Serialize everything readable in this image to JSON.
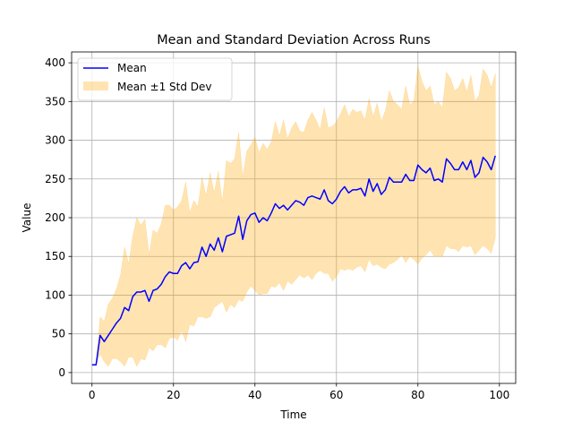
{
  "chart_data": {
    "type": "line",
    "title": "Mean and Standard Deviation Across Runs",
    "xlabel": "Time",
    "ylabel": "Value",
    "xlim": [
      -5,
      104
    ],
    "ylim": [
      -14,
      414
    ],
    "xticks": [
      0,
      20,
      40,
      60,
      80,
      100
    ],
    "yticks": [
      0,
      50,
      100,
      150,
      200,
      250,
      300,
      350,
      400
    ],
    "grid": true,
    "legend_position": "upper-left",
    "series": [
      {
        "name": "Mean",
        "color": "#0000ff",
        "x": [
          0,
          1,
          2,
          3,
          4,
          5,
          6,
          7,
          8,
          9,
          10,
          11,
          12,
          13,
          14,
          15,
          16,
          17,
          18,
          19,
          20,
          21,
          22,
          23,
          24,
          25,
          26,
          27,
          28,
          29,
          30,
          31,
          32,
          33,
          34,
          35,
          36,
          37,
          38,
          39,
          40,
          41,
          42,
          43,
          44,
          45,
          46,
          47,
          48,
          49,
          50,
          51,
          52,
          53,
          54,
          55,
          56,
          57,
          58,
          59,
          60,
          61,
          62,
          63,
          64,
          65,
          66,
          67,
          68,
          69,
          70,
          71,
          72,
          73,
          74,
          75,
          76,
          77,
          78,
          79,
          80,
          81,
          82,
          83,
          84,
          85,
          86,
          87,
          88,
          89,
          90,
          91,
          92,
          93,
          94,
          95,
          96,
          97,
          98,
          99
        ],
        "values": [
          10,
          10,
          48,
          40,
          48,
          56,
          64,
          70,
          84,
          80,
          98,
          104,
          104,
          106,
          92,
          106,
          108,
          114,
          124,
          130,
          128,
          128,
          138,
          142,
          134,
          142,
          143,
          162,
          150,
          166,
          158,
          174,
          156,
          176,
          178,
          180,
          202,
          172,
          196,
          204,
          206,
          194,
          200,
          196,
          206,
          218,
          212,
          216,
          210,
          216,
          222,
          220,
          216,
          226,
          228,
          226,
          224,
          236,
          222,
          218,
          224,
          234,
          240,
          232,
          236,
          236,
          238,
          228,
          250,
          234,
          244,
          230,
          236,
          252,
          246,
          246,
          246,
          256,
          248,
          248,
          268,
          262,
          258,
          264,
          248,
          250,
          246,
          276,
          270,
          262,
          262,
          272,
          262,
          274,
          252,
          258,
          278,
          272,
          262,
          280
        ]
      },
      {
        "name": "Mean ±1 Std Dev",
        "color": "#ffa500",
        "x": [
          0,
          1,
          2,
          3,
          4,
          5,
          6,
          7,
          8,
          9,
          10,
          11,
          12,
          13,
          14,
          15,
          16,
          17,
          18,
          19,
          20,
          21,
          22,
          23,
          24,
          25,
          26,
          27,
          28,
          29,
          30,
          31,
          32,
          33,
          34,
          35,
          36,
          37,
          38,
          39,
          40,
          41,
          42,
          43,
          44,
          45,
          46,
          47,
          48,
          49,
          50,
          51,
          52,
          53,
          54,
          55,
          56,
          57,
          58,
          59,
          60,
          61,
          62,
          63,
          64,
          65,
          66,
          67,
          68,
          69,
          70,
          71,
          72,
          73,
          74,
          75,
          76,
          77,
          78,
          79,
          80,
          81,
          82,
          83,
          84,
          85,
          86,
          87,
          88,
          89,
          90,
          91,
          92,
          93,
          94,
          95,
          96,
          97,
          98,
          99
        ],
        "upper": [
          10,
          10,
          72,
          66,
          88,
          96,
          108,
          126,
          162,
          140,
          176,
          200,
          190,
          198,
          152,
          184,
          180,
          192,
          216,
          216,
          210,
          214,
          222,
          246,
          206,
          222,
          214,
          252,
          228,
          258,
          232,
          260,
          220,
          274,
          270,
          276,
          310,
          252,
          286,
          294,
          304,
          284,
          296,
          288,
          298,
          324,
          306,
          326,
          302,
          316,
          324,
          312,
          310,
          326,
          336,
          326,
          314,
          342,
          316,
          318,
          324,
          334,
          346,
          330,
          340,
          336,
          338,
          326,
          354,
          330,
          348,
          324,
          338,
          364,
          350,
          346,
          340,
          370,
          346,
          350,
          396,
          376,
          364,
          370,
          346,
          350,
          342,
          388,
          380,
          364,
          368,
          380,
          362,
          384,
          350,
          358,
          392,
          384,
          368,
          386
        ],
        "lower": [
          10,
          10,
          24,
          14,
          8,
          18,
          18,
          14,
          8,
          20,
          20,
          8,
          18,
          16,
          32,
          28,
          36,
          36,
          32,
          44,
          46,
          42,
          54,
          40,
          62,
          60,
          72,
          72,
          70,
          72,
          84,
          88,
          92,
          78,
          88,
          84,
          94,
          92,
          104,
          112,
          106,
          100,
          102,
          102,
          112,
          110,
          116,
          106,
          118,
          114,
          120,
          126,
          122,
          126,
          120,
          128,
          132,
          128,
          128,
          118,
          124,
          134,
          132,
          134,
          132,
          136,
          138,
          130,
          146,
          138,
          140,
          136,
          134,
          140,
          142,
          146,
          152,
          142,
          150,
          146,
          140,
          148,
          152,
          158,
          150,
          150,
          150,
          164,
          160,
          160,
          156,
          164,
          162,
          164,
          152,
          158,
          164,
          160,
          154,
          174
        ]
      }
    ]
  }
}
